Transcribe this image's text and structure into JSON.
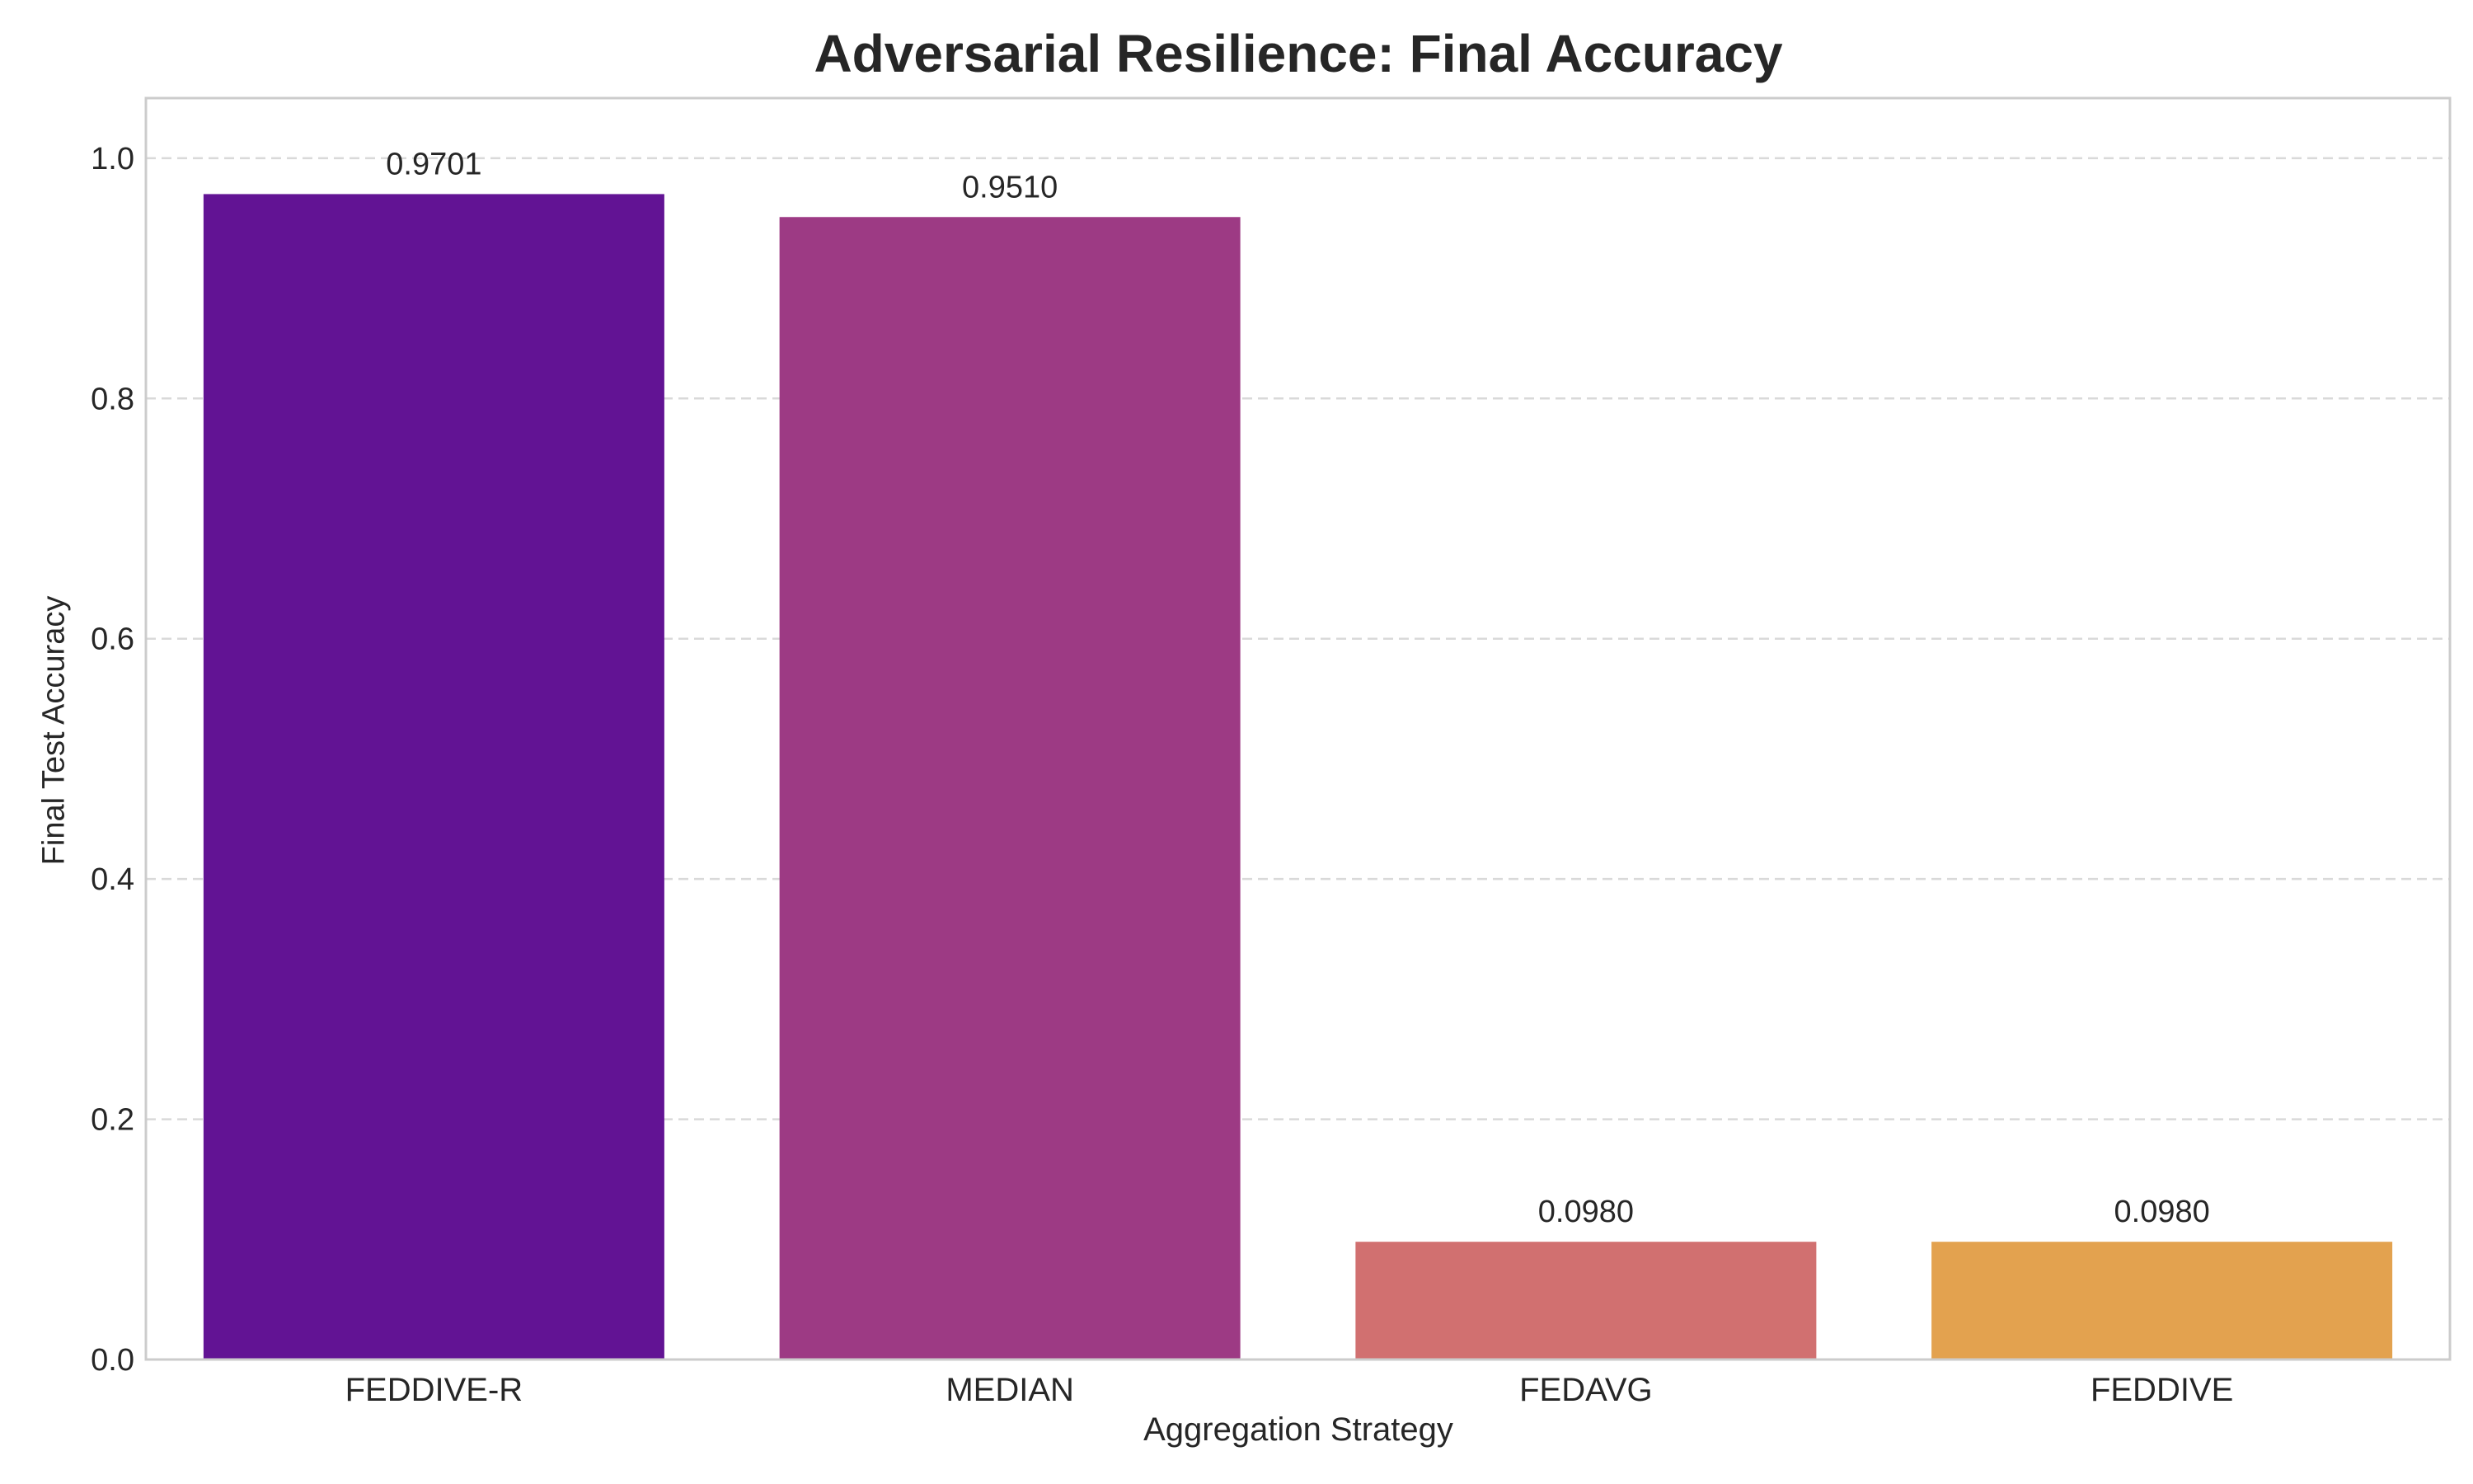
{
  "chart_data": {
    "type": "bar",
    "title": "Adversarial Resilience: Final Accuracy",
    "xlabel": "Aggregation Strategy",
    "ylabel": "Final Test Accuracy",
    "categories": [
      "FEDDIVE-R",
      "MEDIAN",
      "FEDAVG",
      "FEDDIVE"
    ],
    "values": [
      0.9701,
      0.951,
      0.098,
      0.098
    ],
    "value_labels": [
      "0.9701",
      "0.9510",
      "0.0980",
      "0.0980"
    ],
    "colors": [
      "#621394",
      "#9d3a84",
      "#d17070",
      "#e3a24f"
    ],
    "ylim": [
      0,
      1.05
    ],
    "yticks": [
      0.0,
      0.2,
      0.4,
      0.6,
      0.8,
      1.0
    ],
    "ytick_labels": [
      "0.0",
      "0.2",
      "0.4",
      "0.6",
      "0.8",
      "1.0"
    ],
    "grid": "y-dashed",
    "legend": "none"
  }
}
